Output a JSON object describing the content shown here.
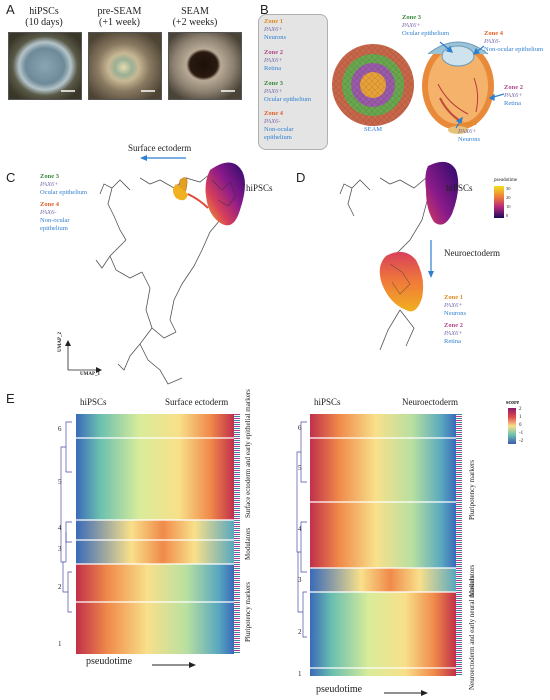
{
  "panel_labels": {
    "a": "A",
    "b": "B",
    "c": "C",
    "d": "D",
    "e": "E"
  },
  "panel_a": {
    "items": [
      {
        "line1": "hiPSCs",
        "line2": "(10 days)"
      },
      {
        "line1": "pre-SEAM",
        "line2": "(+1 week)"
      },
      {
        "line1": "SEAM",
        "line2": "(+2 weeks)"
      }
    ]
  },
  "panel_b": {
    "zones": [
      {
        "title": "Zone 1",
        "gene": "PAX6+",
        "desc": "Neurons",
        "color": "#e08a1e"
      },
      {
        "title": "Zone 2",
        "gene": "PAX6+",
        "desc": "Retina",
        "color": "#b24a8a"
      },
      {
        "title": "Zone 3",
        "gene": "PAX6+",
        "desc": "Ocular epithelium",
        "color": "#3a8a3a"
      },
      {
        "title": "Zone 4",
        "gene": "PAX6-",
        "desc": "Non-ocular epithelium",
        "color": "#e0622a"
      }
    ],
    "seam_label": "SEAM",
    "eye_callouts": [
      {
        "title": "Zone 3",
        "gene": "PAX6+",
        "desc": "Ocular epithelium"
      },
      {
        "title": "Zone 4",
        "gene": "PAX6-",
        "desc": "Non-ocular epithelium"
      },
      {
        "title": "Zone 2",
        "gene": "PAX6+",
        "desc": "Retina"
      },
      {
        "title": "Zone 1",
        "gene": "PAX6+",
        "desc": "Neurons"
      }
    ]
  },
  "panel_c": {
    "arrow_label": "Surface ectoderm",
    "cluster_label": "hiPSCs",
    "zone3": {
      "title": "Zone 3",
      "gene": "PAX6+",
      "desc": "Ocular epithelium"
    },
    "zone4": {
      "title": "Zone 4",
      "gene": "PAX6-",
      "desc1": "Non-ocular",
      "desc2": "epithelium"
    },
    "axis_y": "UMAP_2",
    "axis_x": "UMAP_1"
  },
  "panel_d": {
    "cluster_label": "hiPSCs",
    "arrow_label": "Neuroectoderm",
    "legend_title": "pseudotime",
    "legend_ticks": [
      "30",
      "20",
      "10",
      "0"
    ],
    "zone1": {
      "title": "Zone 1",
      "gene": "PAX6+",
      "desc": "Neurons"
    },
    "zone2": {
      "title": "Zone 2",
      "gene": "PAX6+",
      "desc": "Retina"
    }
  },
  "panel_e": {
    "left": {
      "start": "hiPSCs",
      "end": "Surface ectoderm",
      "clusters": [
        "6",
        "5",
        "4",
        "3",
        "2",
        "1"
      ],
      "group_labels": [
        "Surface ectoderm and early epithelial markers",
        "Modulators",
        "Pluripotency markers"
      ]
    },
    "right": {
      "start": "hiPSCs",
      "end": "Neuroectoderm",
      "clusters": [
        "6",
        "5",
        "4",
        "3",
        "2",
        "1"
      ],
      "group_labels": [
        "Pluripotency markers",
        "Modulators",
        "Neuroectoderm and early neural markers"
      ]
    },
    "score_title": "score",
    "score_ticks": [
      "2",
      "1",
      "0",
      "-1",
      "-2"
    ],
    "xlabel": "pseudotime"
  },
  "colors": {
    "accent_blue": "#2f7fcf",
    "zone_orange": "#e08a1e",
    "zone_purple": "#b24a8a",
    "zone_green": "#3a8a3a",
    "zone_red": "#e0622a"
  }
}
